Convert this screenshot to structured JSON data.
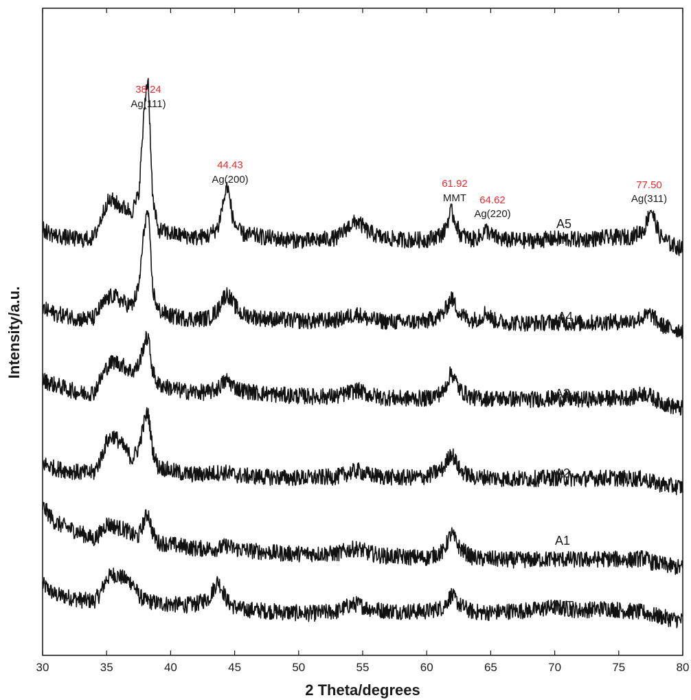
{
  "chart_data": {
    "type": "line",
    "xlabel": "2 Theta/degrees",
    "ylabel": "Intensity/a.u.",
    "xlim": [
      30,
      80
    ],
    "x_ticks": [
      30,
      35,
      40,
      45,
      50,
      55,
      60,
      65,
      70,
      75,
      80
    ],
    "y_ticks_labeled": false,
    "grid": false,
    "legend": "none",
    "line_color": "#111111",
    "peak_label_color": "#e8282c",
    "x": [
      30,
      31,
      32,
      33,
      34,
      34.5,
      35,
      35.5,
      36,
      36.5,
      37,
      37.5,
      38,
      38.24,
      38.6,
      39,
      40,
      41,
      42,
      43,
      43.7,
      44,
      44.43,
      44.9,
      45.5,
      47,
      49,
      51,
      53,
      54,
      54.6,
      55.4,
      56.5,
      58,
      60,
      61.3,
      61.92,
      62.6,
      63.5,
      64.2,
      64.62,
      65.2,
      66,
      68,
      70,
      72,
      74,
      76,
      77,
      77.5,
      78.2,
      79,
      80
    ],
    "series": [
      {
        "name": "MMT",
        "values": [
          36,
          26,
          24,
          21,
          20,
          27,
          42,
          46,
          44,
          41,
          38,
          26,
          20,
          20,
          19,
          18,
          17,
          16,
          17,
          23,
          40,
          32,
          20,
          15,
          12,
          11,
          9,
          8,
          10,
          16,
          17,
          13,
          11,
          10,
          10,
          14,
          26,
          16,
          10,
          9,
          9,
          9,
          10,
          11,
          14,
          11,
          13,
          10,
          9,
          7,
          5,
          3,
          1
        ]
      },
      {
        "name": "A1",
        "values": [
          62,
          46,
          41,
          36,
          30,
          36,
          45,
          43,
          41,
          39,
          34,
          33,
          50,
          56,
          36,
          27,
          25,
          23,
          21,
          21,
          21,
          22,
          24,
          21,
          20,
          18,
          16,
          16,
          16,
          20,
          21,
          17,
          14,
          13,
          12,
          18,
          36,
          21,
          13,
          11,
          11,
          11,
          10,
          10,
          11,
          10,
          11,
          10,
          12,
          8,
          6,
          4,
          2
        ]
      },
      {
        "name": "A2",
        "values": [
          25,
          20,
          18,
          16,
          16,
          28,
          46,
          52,
          46,
          38,
          29,
          40,
          68,
          75,
          38,
          22,
          18,
          15,
          14,
          15,
          16,
          16,
          16,
          14,
          13,
          12,
          11,
          11,
          12,
          16,
          18,
          14,
          12,
          11,
          12,
          20,
          36,
          18,
          12,
          11,
          12,
          11,
          10,
          10,
          11,
          10,
          11,
          10,
          10,
          7,
          5,
          3,
          2
        ]
      },
      {
        "name": "A3",
        "values": [
          30,
          25,
          21,
          17,
          18,
          30,
          42,
          48,
          46,
          42,
          38,
          44,
          68,
          72,
          38,
          26,
          22,
          19,
          18,
          18,
          22,
          26,
          30,
          24,
          20,
          17,
          15,
          14,
          14,
          18,
          20,
          16,
          13,
          12,
          12,
          18,
          38,
          20,
          13,
          12,
          12,
          12,
          12,
          11,
          12,
          11,
          12,
          13,
          17,
          14,
          9,
          5,
          2
        ]
      },
      {
        "name": "A4",
        "values": [
          25,
          20,
          18,
          15,
          16,
          26,
          34,
          38,
          34,
          30,
          28,
          45,
          110,
          120,
          44,
          24,
          18,
          16,
          15,
          16,
          24,
          34,
          40,
          30,
          20,
          16,
          14,
          13,
          14,
          18,
          20,
          15,
          13,
          12,
          13,
          20,
          36,
          20,
          14,
          16,
          22,
          14,
          12,
          11,
          12,
          11,
          12,
          13,
          17,
          20,
          10,
          6,
          4
        ]
      },
      {
        "name": "A5",
        "values": [
          22,
          16,
          14,
          12,
          14,
          30,
          48,
          50,
          45,
          42,
          40,
          55,
          148,
          170,
          52,
          22,
          18,
          16,
          14,
          16,
          24,
          42,
          65,
          30,
          18,
          15,
          12,
          11,
          14,
          26,
          30,
          20,
          14,
          12,
          12,
          18,
          40,
          18,
          12,
          15,
          22,
          15,
          12,
          11,
          13,
          12,
          14,
          15,
          22,
          43,
          16,
          8,
          3
        ]
      }
    ],
    "series_labels": [
      {
        "text": "MMT"
      },
      {
        "text": "A1"
      },
      {
        "text": "A2"
      },
      {
        "text": "A3"
      },
      {
        "text": "A4"
      },
      {
        "text": "A5"
      }
    ],
    "annotations": [
      {
        "x": 38.24,
        "position": "38.24",
        "phase": "Ag(111)"
      },
      {
        "x": 44.43,
        "position": "44.43",
        "phase": "Ag(200)"
      },
      {
        "x": 61.92,
        "position": "61.92",
        "phase": "MMT"
      },
      {
        "x": 64.62,
        "position": "64.62",
        "phase": "Ag(220)"
      },
      {
        "x": 77.5,
        "position": "77.50",
        "phase": "Ag(311)"
      }
    ]
  }
}
